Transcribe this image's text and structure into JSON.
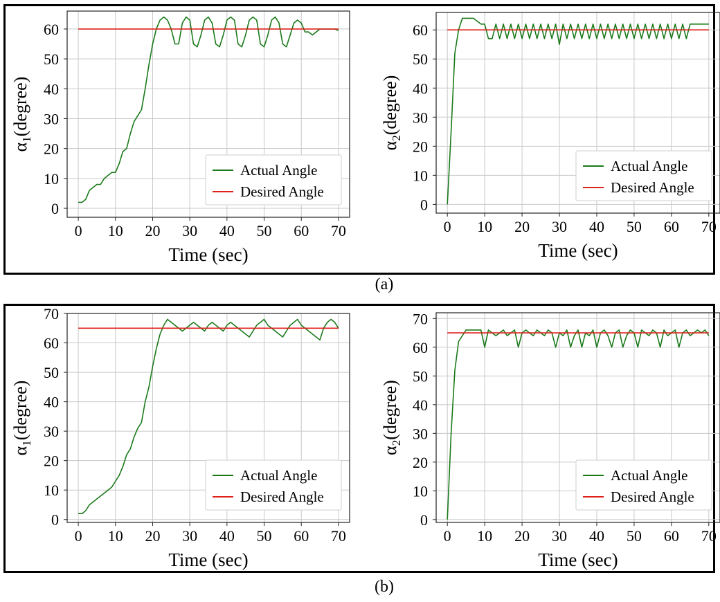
{
  "captions": {
    "a": "(a)",
    "b": "(b)"
  },
  "colors": {
    "actual": "#1a7a1a",
    "desired": "#e0201b",
    "grid": "#c8c8c8"
  },
  "chart_data": [
    {
      "id": "a1",
      "type": "line",
      "xlabel": "Time (sec)",
      "ylabel_sym": "α",
      "ylabel_sub": "1",
      "ylabel_unit": "(degree)",
      "xlim": [
        -3,
        73
      ],
      "ylim": [
        -3,
        66
      ],
      "xticks": [
        0,
        10,
        20,
        30,
        40,
        50,
        60,
        70
      ],
      "yticks": [
        0,
        10,
        20,
        30,
        40,
        50,
        60
      ],
      "legend": "lower-right",
      "series": [
        {
          "name": "Actual Angle",
          "x": [
            0,
            1,
            2,
            3,
            4,
            5,
            6,
            7,
            8,
            9,
            10,
            11,
            12,
            13,
            14,
            15,
            16,
            17,
            18,
            19,
            20,
            21,
            22,
            23,
            24,
            25,
            26,
            27,
            28,
            29,
            30,
            31,
            32,
            33,
            34,
            35,
            36,
            37,
            38,
            39,
            40,
            41,
            42,
            43,
            44,
            45,
            46,
            47,
            48,
            49,
            50,
            51,
            52,
            53,
            54,
            55,
            56,
            57,
            58,
            59,
            60,
            61,
            62,
            63,
            64,
            65,
            66,
            67,
            68,
            69,
            70
          ],
          "y": [
            2,
            2,
            3,
            6,
            7,
            8,
            8,
            10,
            11,
            12,
            12,
            15,
            19,
            20,
            25,
            29,
            31,
            33,
            40,
            48,
            55,
            60,
            63,
            64,
            63,
            60,
            55,
            55,
            62,
            64,
            63,
            55,
            54,
            58,
            63,
            64,
            62,
            55,
            54,
            58,
            63,
            64,
            63,
            55,
            54,
            58,
            63,
            64,
            63,
            55,
            54,
            58,
            63,
            64,
            62,
            55,
            54,
            58,
            62,
            63,
            62,
            59,
            59,
            58,
            59,
            60,
            60,
            60,
            60,
            60,
            59.5
          ]
        },
        {
          "name": "Desired Angle",
          "x": [
            0,
            70
          ],
          "y": [
            60,
            60
          ]
        }
      ]
    },
    {
      "id": "a2",
      "type": "line",
      "xlabel": "Time (sec)",
      "ylabel_sym": "α",
      "ylabel_sub": "2",
      "ylabel_unit": "(degree)",
      "xlim": [
        -3,
        73
      ],
      "ylim": [
        -3,
        66
      ],
      "xticks": [
        0,
        10,
        20,
        30,
        40,
        50,
        60,
        70
      ],
      "yticks": [
        0,
        10,
        20,
        30,
        40,
        50,
        60
      ],
      "legend": "lower-right",
      "series": [
        {
          "name": "Actual Angle",
          "x": [
            0,
            1,
            2,
            3,
            4,
            5,
            6,
            7,
            8,
            9,
            10,
            11,
            12,
            13,
            14,
            15,
            16,
            17,
            18,
            19,
            20,
            21,
            22,
            23,
            24,
            25,
            26,
            27,
            28,
            29,
            30,
            31,
            32,
            33,
            34,
            35,
            36,
            37,
            38,
            39,
            40,
            41,
            42,
            43,
            44,
            45,
            46,
            47,
            48,
            49,
            50,
            51,
            52,
            53,
            54,
            55,
            56,
            57,
            58,
            59,
            60,
            61,
            62,
            63,
            64,
            65,
            66,
            67,
            68,
            69,
            70
          ],
          "y": [
            0,
            25,
            52,
            60,
            64,
            64,
            64,
            64,
            63,
            62,
            62,
            57,
            57,
            62,
            57,
            62,
            57,
            62,
            57,
            62,
            57,
            62,
            57,
            62,
            57,
            62,
            57,
            62,
            57,
            62,
            55,
            62,
            57,
            62,
            57,
            62,
            57,
            62,
            57,
            62,
            57,
            62,
            57,
            62,
            57,
            62,
            57,
            62,
            57,
            62,
            57,
            62,
            57,
            62,
            57,
            62,
            57,
            62,
            57,
            62,
            57,
            62,
            57,
            62,
            57,
            62,
            62,
            62,
            62,
            62,
            62
          ]
        },
        {
          "name": "Desired Angle",
          "x": [
            0,
            70
          ],
          "y": [
            60,
            60
          ]
        }
      ]
    },
    {
      "id": "b1",
      "type": "line",
      "xlabel": "Time (sec)",
      "ylabel_sym": "α",
      "ylabel_sub": "1",
      "ylabel_unit": "(degree)",
      "xlim": [
        -3,
        73
      ],
      "ylim": [
        -1,
        70
      ],
      "xticks": [
        0,
        10,
        20,
        30,
        40,
        50,
        60,
        70
      ],
      "yticks": [
        0,
        10,
        20,
        30,
        40,
        50,
        60,
        70
      ],
      "legend": "lower-right",
      "series": [
        {
          "name": "Actual Angle",
          "x": [
            0,
            1,
            2,
            3,
            4,
            5,
            6,
            7,
            8,
            9,
            10,
            11,
            12,
            13,
            14,
            15,
            16,
            17,
            18,
            19,
            20,
            21,
            22,
            23,
            24,
            25,
            26,
            27,
            28,
            29,
            30,
            31,
            32,
            33,
            34,
            35,
            36,
            37,
            38,
            39,
            40,
            41,
            42,
            43,
            44,
            45,
            46,
            47,
            48,
            49,
            50,
            51,
            52,
            53,
            54,
            55,
            56,
            57,
            58,
            59,
            60,
            61,
            62,
            63,
            64,
            65,
            66,
            67,
            68,
            69,
            70
          ],
          "y": [
            2,
            2,
            3,
            5,
            6,
            7,
            8,
            9,
            10,
            11,
            13,
            15,
            18,
            22,
            24,
            28,
            31,
            33,
            40,
            45,
            52,
            58,
            63,
            66,
            68,
            67,
            66,
            65,
            64,
            65,
            66,
            67,
            66,
            65,
            64,
            66,
            67,
            66,
            65,
            64,
            66,
            67,
            66,
            65,
            64,
            63,
            62,
            64,
            66,
            67,
            68,
            66,
            65,
            64,
            63,
            62,
            64,
            66,
            67,
            68,
            66,
            65,
            64,
            63,
            62,
            61,
            65,
            67,
            68,
            67,
            65
          ]
        },
        {
          "name": "Desired Angle",
          "x": [
            0,
            70
          ],
          "y": [
            65,
            65
          ]
        }
      ]
    },
    {
      "id": "b2",
      "type": "line",
      "xlabel": "Time (sec)",
      "ylabel_sym": "α",
      "ylabel_sub": "2",
      "ylabel_unit": "(degree)",
      "xlim": [
        -3,
        73
      ],
      "ylim": [
        -1,
        72
      ],
      "xticks": [
        0,
        10,
        20,
        30,
        40,
        50,
        60,
        70
      ],
      "yticks": [
        0,
        10,
        20,
        30,
        40,
        50,
        60,
        70
      ],
      "legend": "lower-right",
      "series": [
        {
          "name": "Actual Angle",
          "x": [
            0,
            1,
            2,
            3,
            4,
            5,
            6,
            7,
            8,
            9,
            10,
            11,
            12,
            13,
            14,
            15,
            16,
            17,
            18,
            19,
            20,
            21,
            22,
            23,
            24,
            25,
            26,
            27,
            28,
            29,
            30,
            31,
            32,
            33,
            34,
            35,
            36,
            37,
            38,
            39,
            40,
            41,
            42,
            43,
            44,
            45,
            46,
            47,
            48,
            49,
            50,
            51,
            52,
            53,
            54,
            55,
            56,
            57,
            58,
            59,
            60,
            61,
            62,
            63,
            64,
            65,
            66,
            67,
            68,
            69,
            70
          ],
          "y": [
            0,
            30,
            52,
            62,
            64,
            66,
            66,
            66,
            66,
            66,
            60,
            66,
            65,
            64,
            65,
            66,
            64,
            65,
            66,
            60,
            65,
            66,
            65,
            64,
            66,
            65,
            64,
            66,
            65,
            60,
            65,
            64,
            66,
            60,
            64,
            66,
            60,
            65,
            64,
            66,
            60,
            65,
            66,
            64,
            60,
            65,
            66,
            60,
            64,
            66,
            65,
            60,
            66,
            65,
            64,
            66,
            65,
            60,
            66,
            64,
            65,
            66,
            60,
            65,
            66,
            64,
            65,
            66,
            65,
            66,
            64
          ]
        },
        {
          "name": "Desired Angle",
          "x": [
            0,
            70
          ],
          "y": [
            65,
            65
          ]
        }
      ]
    }
  ]
}
